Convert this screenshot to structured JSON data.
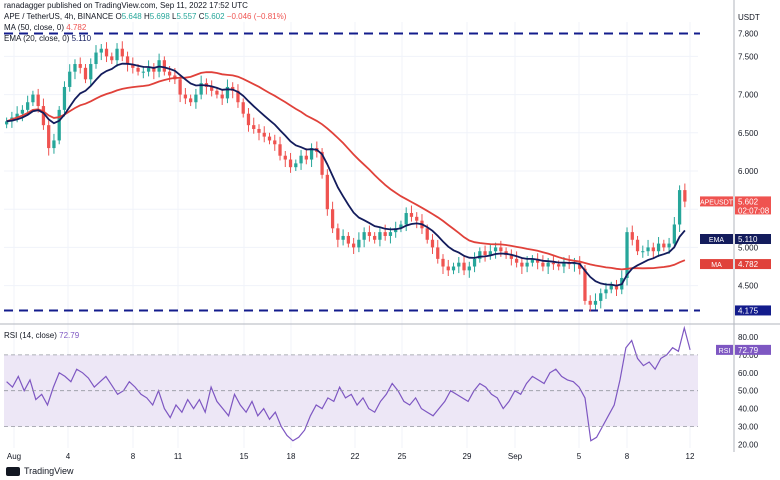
{
  "header": {
    "publisher": "ranadagger published on TradingView.com, Sep 11, 2022 17:52 UTC",
    "symbol": "APE / TetherUS, 4h, BINANCE",
    "o_label": "O",
    "o": "5.648",
    "h_label": "H",
    "h": "5.698",
    "l_label": "L",
    "l": "5.557",
    "c_label": "C",
    "c": "5.602",
    "chg": "−0.046 (−0.81%)",
    "ma_legend": "MA (50, close, 0)",
    "ma_value": "4.782",
    "ema_legend": "EMA (20, close, 0)",
    "ema_value": "5.110",
    "rsi_legend": "RSI (14, close)",
    "rsi_value": "72.79"
  },
  "footer": {
    "brand": "TradingView"
  },
  "colors": {
    "up": "#26a69a",
    "down": "#ef5350",
    "ma": "#e0413a",
    "ema": "#131c5c",
    "rsi": "#7e57c2",
    "rsi_band": "#ede7f6",
    "level": "#131c8c"
  },
  "chart_data": [
    {
      "type": "candlestick",
      "title": "APE / TetherUS, 4h, BINANCE",
      "ylabel": "USDT",
      "y_ticks": [
        "7.800",
        "7.500",
        "7.000",
        "6.500",
        "6.000",
        "5.500",
        "5.000",
        "4.500",
        "4.175"
      ],
      "ylim": [
        4.05,
        7.95
      ],
      "x_ticks": [
        "Aug",
        "4",
        "8",
        "11",
        "15",
        "18",
        "22",
        "25",
        "29",
        "Sep",
        "5",
        "8",
        "12"
      ],
      "horizontal_levels": [
        7.8,
        4.175
      ],
      "price_labels": [
        {
          "name": "APEUSDT",
          "value": "5.602",
          "sub": "02:07:08"
        },
        {
          "name": "EMA",
          "value": "5.110"
        },
        {
          "name": "MA",
          "value": "4.782"
        },
        {
          "name": "",
          "value": "4.175"
        }
      ],
      "close_series": [
        6.65,
        6.7,
        6.75,
        6.8,
        6.9,
        7.0,
        6.85,
        6.6,
        6.3,
        6.4,
        6.8,
        7.1,
        7.3,
        7.4,
        7.35,
        7.2,
        7.4,
        7.55,
        7.6,
        7.5,
        7.45,
        7.6,
        7.5,
        7.4,
        7.35,
        7.3,
        7.3,
        7.35,
        7.3,
        7.45,
        7.3,
        7.25,
        7.2,
        7.0,
        6.95,
        6.9,
        7.0,
        7.15,
        7.1,
        7.05,
        7.0,
        6.95,
        7.1,
        7.05,
        6.9,
        6.75,
        6.6,
        6.55,
        6.5,
        6.45,
        6.4,
        6.35,
        6.2,
        6.15,
        6.05,
        6.1,
        6.2,
        6.15,
        6.3,
        6.25,
        5.95,
        5.5,
        5.25,
        5.1,
        5.15,
        5.05,
        5.0,
        5.1,
        5.2,
        5.15,
        5.1,
        5.2,
        5.15,
        5.2,
        5.25,
        5.3,
        5.45,
        5.4,
        5.35,
        5.25,
        5.1,
        5.0,
        4.85,
        4.75,
        4.7,
        4.75,
        4.8,
        4.7,
        4.75,
        4.85,
        4.95,
        4.9,
        4.95,
        5.0,
        4.95,
        4.9,
        4.85,
        4.8,
        4.75,
        4.8,
        4.85,
        4.8,
        4.75,
        4.8,
        4.78,
        4.75,
        4.8,
        4.78,
        4.8,
        4.72,
        4.3,
        4.25,
        4.3,
        4.4,
        4.45,
        4.5,
        4.45,
        4.6,
        5.2,
        5.1,
        4.95,
        4.95,
        5.0,
        4.95,
        5.05,
        5.0,
        5.05,
        5.3,
        5.75,
        5.6
      ],
      "series": [
        {
          "name": "MA (50, close, 0)",
          "last": 4.782
        },
        {
          "name": "EMA (20, close, 0)",
          "last": 5.11
        }
      ]
    },
    {
      "type": "line",
      "title": "RSI (14, close)",
      "y_ticks": [
        "80.00",
        "70.00",
        "60.00",
        "50.00",
        "40.00",
        "30.00",
        "20.00"
      ],
      "ylim": [
        18,
        85
      ],
      "band": [
        30,
        70
      ],
      "series": [
        {
          "name": "RSI (14, close)",
          "last": 72.79,
          "values": [
            55,
            52,
            58,
            50,
            56,
            45,
            48,
            42,
            52,
            60,
            58,
            55,
            62,
            60,
            57,
            52,
            55,
            58,
            53,
            48,
            50,
            55,
            52,
            48,
            46,
            42,
            50,
            40,
            35,
            42,
            38,
            45,
            40,
            45,
            38,
            52,
            44,
            40,
            36,
            48,
            42,
            38,
            44,
            36,
            40,
            34,
            38,
            30,
            25,
            22,
            24,
            28,
            36,
            42,
            40,
            46,
            44,
            52,
            46,
            48,
            42,
            46,
            40,
            38,
            44,
            48,
            54,
            50,
            44,
            42,
            46,
            40,
            38,
            36,
            40,
            44,
            50,
            48,
            46,
            44,
            50,
            54,
            52,
            48,
            46,
            40,
            44,
            50,
            48,
            54,
            58,
            56,
            54,
            60,
            62,
            58,
            56,
            55,
            52,
            46,
            22,
            24,
            30,
            36,
            42,
            56,
            74,
            78,
            68,
            64,
            66,
            62,
            68,
            70,
            74,
            72,
            85,
            72.79
          ]
        }
      ]
    }
  ]
}
